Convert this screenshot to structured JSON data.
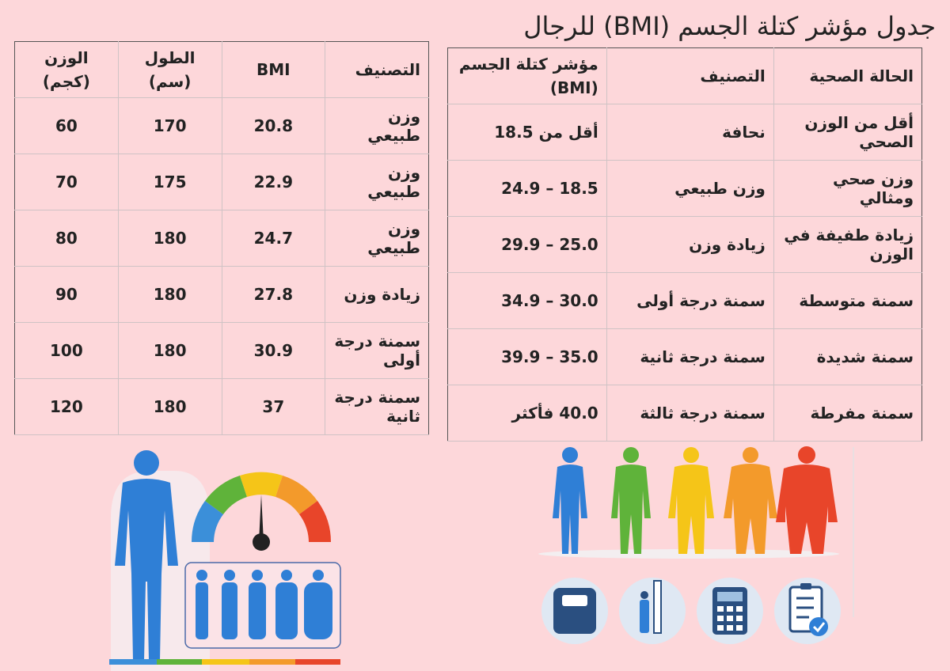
{
  "title": "جدول مؤشر كتلة الجسم (BMI) للرجال",
  "ranges_table": {
    "headers": [
      "الحالة الصحية",
      "التصنيف",
      "مؤشر كتلة الجسم (BMI)"
    ],
    "rows": [
      [
        "أقل من الوزن الصحي",
        "نحافة",
        "أقل من 18.5"
      ],
      [
        "وزن صحي ومثالي",
        "وزن طبيعي",
        "18.5 – 24.9"
      ],
      [
        "زيادة طفيفة في الوزن",
        "زيادة وزن",
        "25.0 – 29.9"
      ],
      [
        "سمنة متوسطة",
        "سمنة درجة أولى",
        "30.0 – 34.9"
      ],
      [
        "سمنة شديدة",
        "سمنة درجة ثانية",
        "35.0 – 39.9"
      ],
      [
        "سمنة مفرطة",
        "سمنة درجة ثالثة",
        "40.0 فأكثر"
      ]
    ]
  },
  "examples_table": {
    "headers": [
      "التصنيف",
      "BMI",
      "الطول (سم)",
      "الوزن (كجم)"
    ],
    "rows": [
      [
        "وزن طبيعي",
        "20.8",
        "170",
        "60"
      ],
      [
        "وزن طبيعي",
        "22.9",
        "175",
        "70"
      ],
      [
        "وزن طبيعي",
        "24.7",
        "180",
        "80"
      ],
      [
        "زيادة وزن",
        "27.8",
        "180",
        "90"
      ],
      [
        "سمنة درجة أولى",
        "30.9",
        "180",
        "100"
      ],
      [
        "سمنة درجة ثانية",
        "37",
        "180",
        "120"
      ]
    ]
  },
  "colors": {
    "background": "#fdd7da",
    "blue": "#2f7fd6",
    "green": "#5fb33a",
    "yellow": "#f5c518",
    "orange": "#f39a2b",
    "red": "#e8452a"
  },
  "illustrations": [
    "body-silhouette-icon",
    "gauge-icon",
    "scale-icon",
    "height-ruler-icon",
    "calculator-icon",
    "clipboard-check-icon"
  ]
}
